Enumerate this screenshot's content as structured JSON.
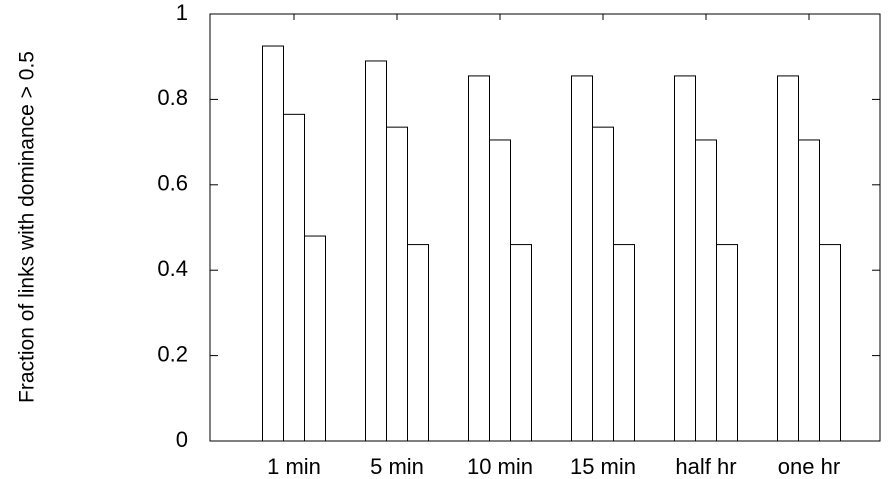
{
  "chart_data": {
    "type": "bar",
    "y_label": "Fraction of links with dominance > 0.5",
    "categories": [
      "1 min",
      "5 min",
      "10 min",
      "15 min",
      "half hr",
      "one hr"
    ],
    "series": [
      {
        "color": "#ffffff",
        "values": [
          0.925,
          0.89,
          0.855,
          0.855,
          0.855,
          0.855
        ]
      },
      {
        "color": "#ffffff",
        "values": [
          0.765,
          0.735,
          0.705,
          0.735,
          0.705,
          0.705
        ]
      },
      {
        "color": "#ffffff",
        "values": [
          0.48,
          0.46,
          0.46,
          0.46,
          0.46,
          0.46
        ]
      }
    ],
    "ylim": [
      0,
      1
    ],
    "yticks": [
      0,
      0.2,
      0.4,
      0.6,
      0.8,
      1
    ],
    "grid": false
  }
}
